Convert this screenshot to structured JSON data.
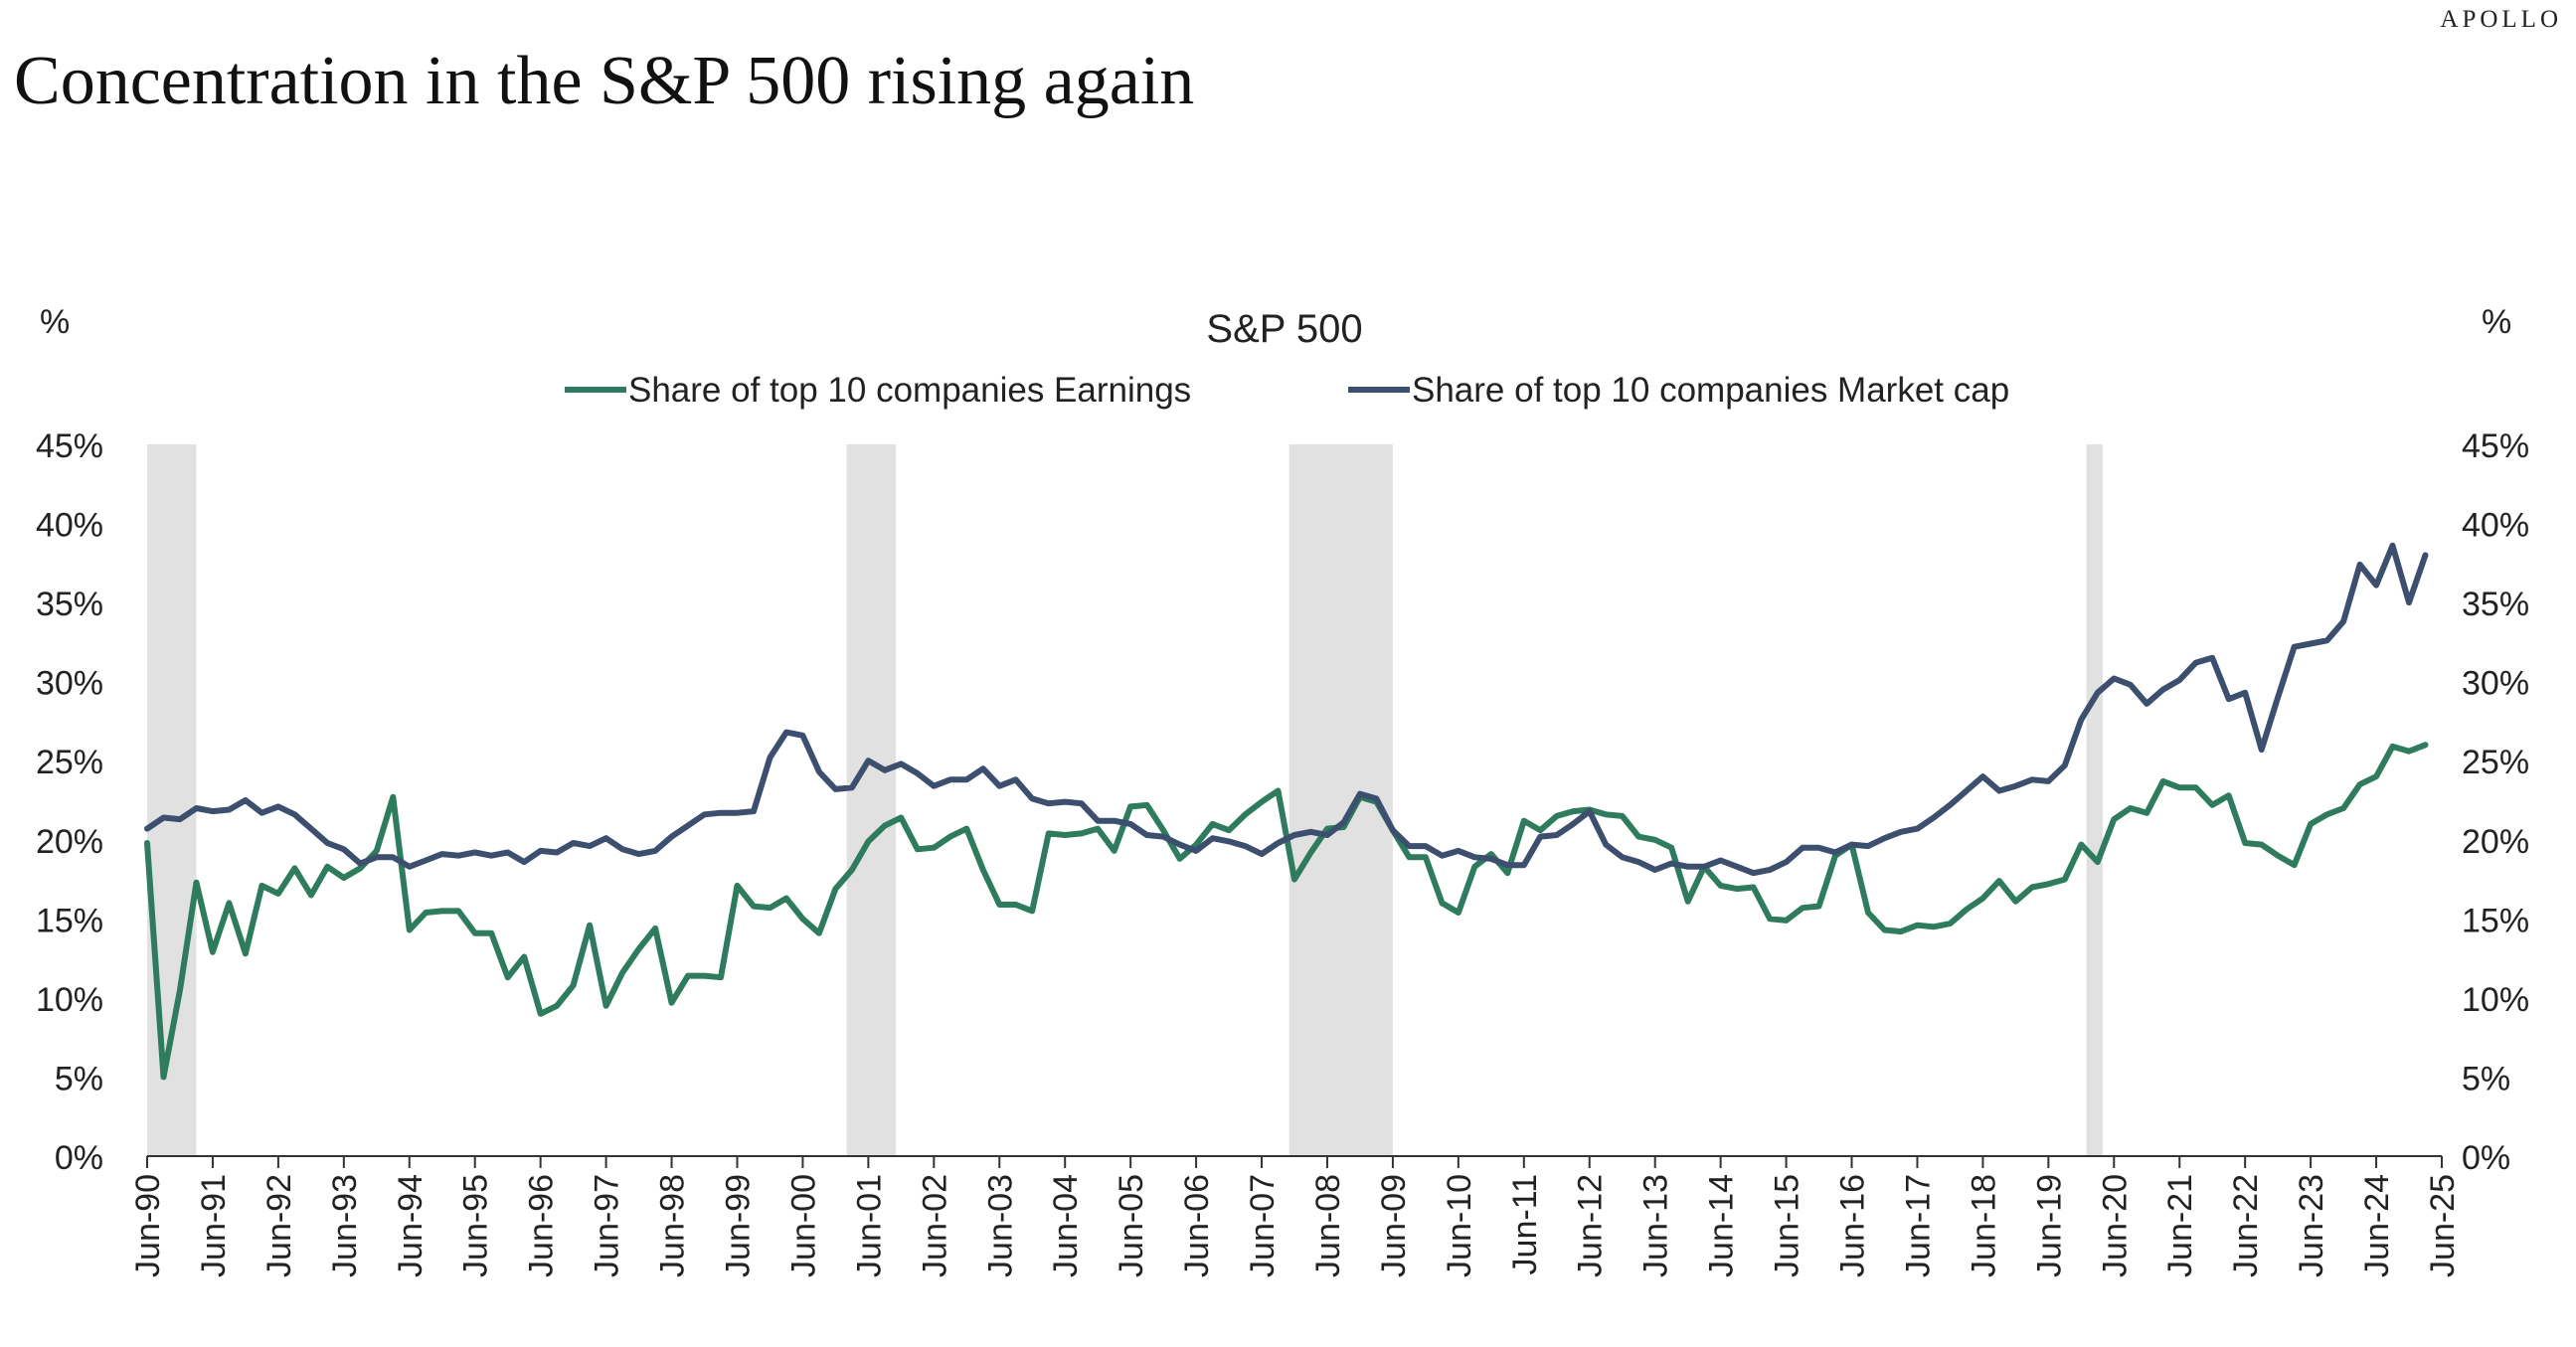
{
  "brand": "APOLLO",
  "page_title": "Concentration in the S&P 500 rising again",
  "chart_data": {
    "type": "line",
    "title": "S&P 500",
    "ylabel_left": "%",
    "ylabel_right": "%",
    "ylim": [
      0,
      45
    ],
    "ytick_labels": [
      "0%",
      "5%",
      "10%",
      "15%",
      "20%",
      "25%",
      "30%",
      "35%",
      "40%",
      "45%"
    ],
    "xtick_labels": [
      "Jun-90",
      "Jun-91",
      "Jun-92",
      "Jun-93",
      "Jun-94",
      "Jun-95",
      "Jun-96",
      "Jun-97",
      "Jun-98",
      "Jun-99",
      "Jun-00",
      "Jun-01",
      "Jun-02",
      "Jun-03",
      "Jun-04",
      "Jun-05",
      "Jun-06",
      "Jun-07",
      "Jun-08",
      "Jun-09",
      "Jun-10",
      "Jun-11",
      "Jun-12",
      "Jun-13",
      "Jun-14",
      "Jun-15",
      "Jun-16",
      "Jun-17",
      "Jun-18",
      "Jun-19",
      "Jun-20",
      "Jun-21",
      "Jun-22",
      "Jun-23",
      "Jun-24",
      "Jun-25"
    ],
    "x_range": [
      1990.5,
      2025.5
    ],
    "legend_placement": "top-center",
    "grid": false,
    "shaded_periods": [
      [
        1990.5,
        1991.25
      ],
      [
        2001.17,
        2001.92
      ],
      [
        2007.92,
        2009.5
      ],
      [
        2020.08,
        2020.33
      ]
    ],
    "shading_color": "#e1e1e1",
    "series": [
      {
        "name": "Share of top 10 companies Earnings",
        "color": "#2e7b5d",
        "points": [
          [
            1990.5,
            19.8
          ],
          [
            1990.75,
            5.0
          ],
          [
            1991.0,
            10.5
          ],
          [
            1991.25,
            17.3
          ],
          [
            1991.5,
            12.9
          ],
          [
            1991.75,
            16.0
          ],
          [
            1992.0,
            12.8
          ],
          [
            1992.25,
            17.1
          ],
          [
            1992.5,
            16.6
          ],
          [
            1992.75,
            18.2
          ],
          [
            1993.0,
            16.5
          ],
          [
            1993.25,
            18.3
          ],
          [
            1993.5,
            17.6
          ],
          [
            1993.75,
            18.2
          ],
          [
            1994.0,
            19.3
          ],
          [
            1994.25,
            22.7
          ],
          [
            1994.5,
            14.3
          ],
          [
            1994.75,
            15.4
          ],
          [
            1995.0,
            15.5
          ],
          [
            1995.25,
            15.5
          ],
          [
            1995.5,
            14.1
          ],
          [
            1995.75,
            14.1
          ],
          [
            1996.0,
            11.3
          ],
          [
            1996.25,
            12.6
          ],
          [
            1996.5,
            9.0
          ],
          [
            1996.75,
            9.5
          ],
          [
            1997.0,
            10.8
          ],
          [
            1997.25,
            14.6
          ],
          [
            1997.5,
            9.5
          ],
          [
            1997.75,
            11.6
          ],
          [
            1998.0,
            13.1
          ],
          [
            1998.25,
            14.4
          ],
          [
            1998.5,
            9.7
          ],
          [
            1998.75,
            11.4
          ],
          [
            1999.0,
            11.4
          ],
          [
            1999.25,
            11.3
          ],
          [
            1999.5,
            17.1
          ],
          [
            1999.75,
            15.8
          ],
          [
            2000.0,
            15.7
          ],
          [
            2000.25,
            16.3
          ],
          [
            2000.5,
            15.0
          ],
          [
            2000.75,
            14.1
          ],
          [
            2001.0,
            16.9
          ],
          [
            2001.25,
            18.1
          ],
          [
            2001.5,
            19.9
          ],
          [
            2001.75,
            20.9
          ],
          [
            2002.0,
            21.4
          ],
          [
            2002.25,
            19.4
          ],
          [
            2002.5,
            19.5
          ],
          [
            2002.75,
            20.2
          ],
          [
            2003.0,
            20.7
          ],
          [
            2003.25,
            18.1
          ],
          [
            2003.5,
            15.9
          ],
          [
            2003.75,
            15.9
          ],
          [
            2004.0,
            15.5
          ],
          [
            2004.25,
            20.4
          ],
          [
            2004.5,
            20.3
          ],
          [
            2004.75,
            20.4
          ],
          [
            2005.0,
            20.7
          ],
          [
            2005.25,
            19.3
          ],
          [
            2005.5,
            22.1
          ],
          [
            2005.75,
            22.2
          ],
          [
            2006.0,
            20.6
          ],
          [
            2006.25,
            18.8
          ],
          [
            2006.5,
            19.7
          ],
          [
            2006.75,
            21.0
          ],
          [
            2007.0,
            20.6
          ],
          [
            2007.25,
            21.6
          ],
          [
            2007.5,
            22.4
          ],
          [
            2007.75,
            23.1
          ],
          [
            2008.0,
            17.5
          ],
          [
            2008.25,
            19.2
          ],
          [
            2008.5,
            20.7
          ],
          [
            2008.75,
            20.8
          ],
          [
            2009.0,
            22.7
          ],
          [
            2009.25,
            22.4
          ],
          [
            2009.5,
            20.6
          ],
          [
            2009.75,
            18.9
          ],
          [
            2010.0,
            18.9
          ],
          [
            2010.25,
            16.0
          ],
          [
            2010.5,
            15.4
          ],
          [
            2010.75,
            18.3
          ],
          [
            2011.0,
            19.1
          ],
          [
            2011.25,
            17.9
          ],
          [
            2011.5,
            21.2
          ],
          [
            2011.75,
            20.6
          ],
          [
            2012.0,
            21.5
          ],
          [
            2012.25,
            21.8
          ],
          [
            2012.5,
            21.9
          ],
          [
            2012.75,
            21.6
          ],
          [
            2013.0,
            21.5
          ],
          [
            2013.25,
            20.2
          ],
          [
            2013.5,
            20.0
          ],
          [
            2013.75,
            19.5
          ],
          [
            2014.0,
            16.1
          ],
          [
            2014.25,
            18.3
          ],
          [
            2014.5,
            17.1
          ],
          [
            2014.75,
            16.9
          ],
          [
            2015.0,
            17.0
          ],
          [
            2015.25,
            15.0
          ],
          [
            2015.5,
            14.9
          ],
          [
            2015.75,
            15.7
          ],
          [
            2016.0,
            15.8
          ],
          [
            2016.25,
            19.0
          ],
          [
            2016.5,
            19.7
          ],
          [
            2016.75,
            15.4
          ],
          [
            2017.0,
            14.3
          ],
          [
            2017.25,
            14.2
          ],
          [
            2017.5,
            14.6
          ],
          [
            2017.75,
            14.5
          ],
          [
            2018.0,
            14.7
          ],
          [
            2018.25,
            15.6
          ],
          [
            2018.5,
            16.3
          ],
          [
            2018.75,
            17.4
          ],
          [
            2019.0,
            16.1
          ],
          [
            2019.25,
            17.0
          ],
          [
            2019.5,
            17.2
          ],
          [
            2019.75,
            17.5
          ],
          [
            2020.0,
            19.7
          ],
          [
            2020.25,
            18.6
          ],
          [
            2020.5,
            21.3
          ],
          [
            2020.75,
            22.0
          ],
          [
            2021.0,
            21.7
          ],
          [
            2021.25,
            23.7
          ],
          [
            2021.5,
            23.3
          ],
          [
            2021.75,
            23.3
          ],
          [
            2022.0,
            22.2
          ],
          [
            2022.25,
            22.8
          ],
          [
            2022.5,
            19.8
          ],
          [
            2022.75,
            19.7
          ],
          [
            2023.0,
            19.0
          ],
          [
            2023.25,
            18.4
          ],
          [
            2023.5,
            21.0
          ],
          [
            2023.75,
            21.6
          ],
          [
            2024.0,
            22.0
          ],
          [
            2024.25,
            23.5
          ],
          [
            2024.5,
            24.0
          ],
          [
            2024.75,
            25.9
          ],
          [
            2025.0,
            25.6
          ],
          [
            2025.25,
            26.0
          ]
        ]
      },
      {
        "name": "Share of top 10 companies Market cap",
        "color": "#3d4f6e",
        "points": [
          [
            1990.5,
            20.7
          ],
          [
            1990.75,
            21.4
          ],
          [
            1991.0,
            21.3
          ],
          [
            1991.25,
            22.0
          ],
          [
            1991.5,
            21.8
          ],
          [
            1991.75,
            21.9
          ],
          [
            1992.0,
            22.5
          ],
          [
            1992.25,
            21.7
          ],
          [
            1992.5,
            22.1
          ],
          [
            1992.75,
            21.6
          ],
          [
            1993.0,
            20.7
          ],
          [
            1993.25,
            19.8
          ],
          [
            1993.5,
            19.4
          ],
          [
            1993.75,
            18.5
          ],
          [
            1994.0,
            18.9
          ],
          [
            1994.25,
            18.9
          ],
          [
            1994.5,
            18.3
          ],
          [
            1994.75,
            18.7
          ],
          [
            1995.0,
            19.1
          ],
          [
            1995.25,
            19.0
          ],
          [
            1995.5,
            19.2
          ],
          [
            1995.75,
            19.0
          ],
          [
            1996.0,
            19.2
          ],
          [
            1996.25,
            18.6
          ],
          [
            1996.5,
            19.3
          ],
          [
            1996.75,
            19.2
          ],
          [
            1997.0,
            19.8
          ],
          [
            1997.25,
            19.6
          ],
          [
            1997.5,
            20.1
          ],
          [
            1997.75,
            19.4
          ],
          [
            1998.0,
            19.1
          ],
          [
            1998.25,
            19.3
          ],
          [
            1998.5,
            20.2
          ],
          [
            1998.75,
            20.9
          ],
          [
            1999.0,
            21.6
          ],
          [
            1999.25,
            21.7
          ],
          [
            1999.5,
            21.7
          ],
          [
            1999.75,
            21.8
          ],
          [
            2000.0,
            25.2
          ],
          [
            2000.25,
            26.8
          ],
          [
            2000.5,
            26.6
          ],
          [
            2000.75,
            24.3
          ],
          [
            2001.0,
            23.2
          ],
          [
            2001.25,
            23.3
          ],
          [
            2001.5,
            25.0
          ],
          [
            2001.75,
            24.4
          ],
          [
            2002.0,
            24.8
          ],
          [
            2002.25,
            24.2
          ],
          [
            2002.5,
            23.4
          ],
          [
            2002.75,
            23.8
          ],
          [
            2003.0,
            23.8
          ],
          [
            2003.25,
            24.5
          ],
          [
            2003.5,
            23.4
          ],
          [
            2003.75,
            23.8
          ],
          [
            2004.0,
            22.6
          ],
          [
            2004.25,
            22.3
          ],
          [
            2004.5,
            22.4
          ],
          [
            2004.75,
            22.3
          ],
          [
            2005.0,
            21.2
          ],
          [
            2005.25,
            21.2
          ],
          [
            2005.5,
            21.0
          ],
          [
            2005.75,
            20.3
          ],
          [
            2006.0,
            20.2
          ],
          [
            2006.25,
            19.7
          ],
          [
            2006.5,
            19.3
          ],
          [
            2006.75,
            20.1
          ],
          [
            2007.0,
            19.9
          ],
          [
            2007.25,
            19.6
          ],
          [
            2007.5,
            19.1
          ],
          [
            2007.75,
            19.8
          ],
          [
            2008.0,
            20.3
          ],
          [
            2008.25,
            20.5
          ],
          [
            2008.5,
            20.3
          ],
          [
            2008.75,
            21.1
          ],
          [
            2009.0,
            22.9
          ],
          [
            2009.25,
            22.6
          ],
          [
            2009.5,
            20.6
          ],
          [
            2009.75,
            19.6
          ],
          [
            2010.0,
            19.6
          ],
          [
            2010.25,
            19.0
          ],
          [
            2010.5,
            19.3
          ],
          [
            2010.75,
            18.9
          ],
          [
            2011.0,
            18.8
          ],
          [
            2011.25,
            18.4
          ],
          [
            2011.5,
            18.4
          ],
          [
            2011.75,
            20.2
          ],
          [
            2012.0,
            20.3
          ],
          [
            2012.25,
            21.0
          ],
          [
            2012.5,
            21.8
          ],
          [
            2012.75,
            19.7
          ],
          [
            2013.0,
            18.9
          ],
          [
            2013.25,
            18.6
          ],
          [
            2013.5,
            18.1
          ],
          [
            2013.75,
            18.5
          ],
          [
            2014.0,
            18.3
          ],
          [
            2014.25,
            18.3
          ],
          [
            2014.5,
            18.7
          ],
          [
            2014.75,
            18.3
          ],
          [
            2015.0,
            17.9
          ],
          [
            2015.25,
            18.1
          ],
          [
            2015.5,
            18.6
          ],
          [
            2015.75,
            19.5
          ],
          [
            2016.0,
            19.5
          ],
          [
            2016.25,
            19.2
          ],
          [
            2016.5,
            19.7
          ],
          [
            2016.75,
            19.6
          ],
          [
            2017.0,
            20.1
          ],
          [
            2017.25,
            20.5
          ],
          [
            2017.5,
            20.7
          ],
          [
            2017.75,
            21.4
          ],
          [
            2018.0,
            22.2
          ],
          [
            2018.25,
            23.1
          ],
          [
            2018.5,
            24.0
          ],
          [
            2018.75,
            23.1
          ],
          [
            2019.0,
            23.4
          ],
          [
            2019.25,
            23.8
          ],
          [
            2019.5,
            23.7
          ],
          [
            2019.75,
            24.7
          ],
          [
            2020.0,
            27.6
          ],
          [
            2020.25,
            29.3
          ],
          [
            2020.5,
            30.2
          ],
          [
            2020.75,
            29.8
          ],
          [
            2021.0,
            28.6
          ],
          [
            2021.25,
            29.5
          ],
          [
            2021.5,
            30.1
          ],
          [
            2021.75,
            31.2
          ],
          [
            2022.0,
            31.5
          ],
          [
            2022.25,
            28.9
          ],
          [
            2022.5,
            29.3
          ],
          [
            2022.75,
            25.7
          ],
          [
            2023.0,
            29.0
          ],
          [
            2023.25,
            32.2
          ],
          [
            2023.5,
            32.4
          ],
          [
            2023.75,
            32.6
          ],
          [
            2024.0,
            33.8
          ],
          [
            2024.25,
            37.4
          ],
          [
            2024.5,
            36.1
          ],
          [
            2024.75,
            38.6
          ],
          [
            2025.0,
            35.0
          ],
          [
            2025.25,
            38.0
          ]
        ]
      }
    ]
  }
}
